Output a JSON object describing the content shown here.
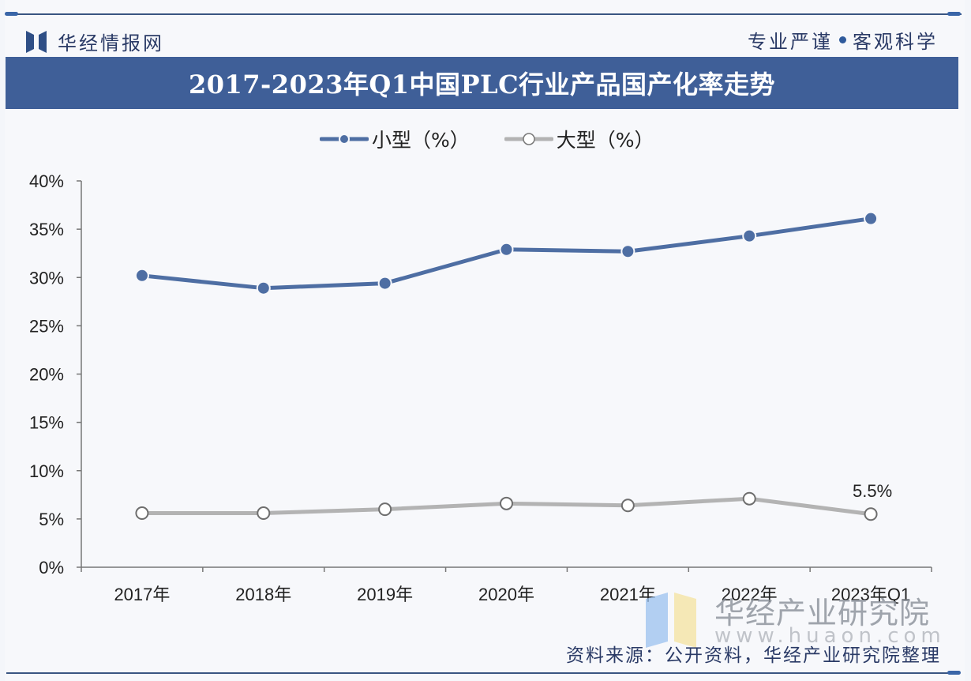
{
  "header": {
    "brand_name": "华经情报网",
    "motto_left": "专业严谨",
    "motto_right": "客观科学",
    "title": "2017-2023年Q1中国PLC行业产品国产化率走势"
  },
  "legend": {
    "items": [
      {
        "label": "小型（%）",
        "color": "#4e6ea3",
        "marker": "filled-circle"
      },
      {
        "label": "大型（%）",
        "color": "#b3b3b3",
        "marker": "hollow-circle"
      }
    ]
  },
  "footer": {
    "source": "资料来源：公开资料，华经产业研究院整理",
    "watermark_name": "华经产业研究院",
    "watermark_url": "www.huaon.com"
  },
  "colors": {
    "title_bar": "#3f5f98",
    "series_small": "#4e6ea3",
    "series_large": "#b3b3b3",
    "brand_text": "#2a3a66"
  },
  "chart_data": {
    "type": "line",
    "title": "2017-2023年Q1中国PLC行业产品国产化率走势",
    "xlabel": "",
    "ylabel": "",
    "categories": [
      "2017年",
      "2018年",
      "2019年",
      "2020年",
      "2021年",
      "2022年",
      "2023年Q1"
    ],
    "series": [
      {
        "name": "小型（%）",
        "values": [
          30.2,
          28.9,
          29.4,
          32.9,
          32.7,
          34.3,
          36.1
        ]
      },
      {
        "name": "大型（%）",
        "values": [
          5.6,
          5.6,
          6.0,
          6.6,
          6.4,
          7.1,
          5.5
        ]
      }
    ],
    "annotations": [
      {
        "series": "大型（%）",
        "category": "2023年Q1",
        "text": "5.5%"
      }
    ],
    "y_ticks": [
      "0%",
      "5%",
      "10%",
      "15%",
      "20%",
      "25%",
      "30%",
      "35%",
      "40%"
    ],
    "ylim": [
      0,
      40
    ],
    "grid": false,
    "legend_position": "top"
  }
}
